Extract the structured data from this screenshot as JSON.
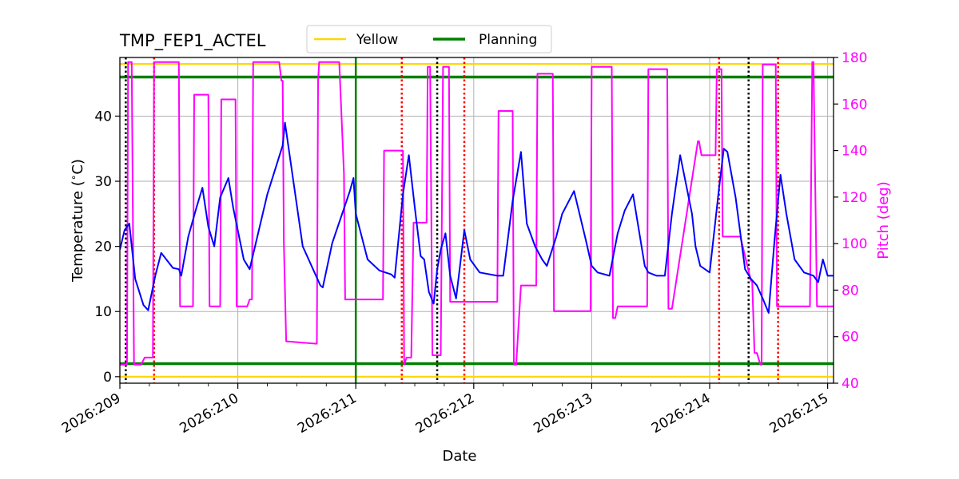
{
  "chart_data": {
    "type": "line",
    "title": "TMP_FEP1_ACTEL",
    "xlabel": "Date",
    "ylabel": "Temperature ($^\\circ$C)",
    "y2label": "Pitch (deg)",
    "x_start_doy": 209,
    "xlim": [
      209,
      215.05
    ],
    "ylim": [
      -1,
      49
    ],
    "y2lim": [
      40,
      180
    ],
    "x_tick_labels": [
      "2026:209",
      "2026:210",
      "2026:211",
      "2026:212",
      "2026:213",
      "2026:214",
      "2026:215"
    ],
    "x_tick_values": [
      209,
      210,
      211,
      212,
      213,
      214,
      215
    ],
    "y_ticks": [
      0,
      10,
      20,
      30,
      40
    ],
    "y2_ticks": [
      40,
      60,
      80,
      100,
      120,
      140,
      160,
      180
    ],
    "grid": true,
    "legend": {
      "placement": "top-center",
      "entries": [
        {
          "name": "Yellow",
          "color": "#FFD700"
        },
        {
          "name": "Planning",
          "color": "#008000"
        }
      ]
    },
    "colors": {
      "temperature": "#0000FF",
      "pitch": "#FF00FF",
      "yellow": "#FFD700",
      "planning": "#008000",
      "red_markers": "#FF0000",
      "black_markers": "#000000",
      "pitch_axis": "#FF00FF"
    },
    "limits": {
      "yellow_high": 48,
      "yellow_low": 0,
      "planning_high": 46,
      "planning_low": 2
    },
    "vertical_lines": {
      "planning": [
        211.0
      ],
      "red_dotted": [
        209.29,
        211.39,
        211.92,
        214.08,
        214.58
      ],
      "black_dotted": [
        209.05,
        211.69,
        214.33
      ]
    },
    "temperature_series": {
      "name": "Temperature",
      "x": [
        209.0,
        209.04,
        209.08,
        209.13,
        209.2,
        209.24,
        209.3,
        209.35,
        209.45,
        209.5,
        209.52,
        209.58,
        209.65,
        209.7,
        209.75,
        209.8,
        209.85,
        209.92,
        209.96,
        210.05,
        210.1,
        210.25,
        210.38,
        210.4,
        210.55,
        210.7,
        210.72,
        210.8,
        210.95,
        210.98,
        211.0,
        211.1,
        211.2,
        211.3,
        211.33,
        211.4,
        211.45,
        211.5,
        211.55,
        211.58,
        211.62,
        211.66,
        211.69,
        211.72,
        211.76,
        211.8,
        211.85,
        211.92,
        211.97,
        212.05,
        212.2,
        212.25,
        212.33,
        212.4,
        212.45,
        212.52,
        212.58,
        212.62,
        212.7,
        212.75,
        212.85,
        212.95,
        213.0,
        213.05,
        213.15,
        213.22,
        213.28,
        213.35,
        213.45,
        213.48,
        213.55,
        213.62,
        213.68,
        213.75,
        213.85,
        213.88,
        213.92,
        214.0,
        214.08,
        214.12,
        214.15,
        214.22,
        214.3,
        214.35,
        214.4,
        214.45,
        214.5,
        214.55,
        214.6,
        214.65,
        214.72,
        214.8,
        214.88,
        214.92,
        214.96,
        215.0,
        215.05
      ],
      "y": [
        19.5,
        22.5,
        23.5,
        15.0,
        11.0,
        10.2,
        15.5,
        19.0,
        16.7,
        16.5,
        15.5,
        21.5,
        26.0,
        29.0,
        23.0,
        20.0,
        27.5,
        30.5,
        26.0,
        18.0,
        16.5,
        28.0,
        35.5,
        39.0,
        20.0,
        14.0,
        13.7,
        20.5,
        28.5,
        30.5,
        25.0,
        18.0,
        16.3,
        15.7,
        15.2,
        28.0,
        34.0,
        26.0,
        18.5,
        18.0,
        13.0,
        11.2,
        16.5,
        19.5,
        22.0,
        15.5,
        12.0,
        22.5,
        18.0,
        16.0,
        15.5,
        15.5,
        27.0,
        34.5,
        23.5,
        20.0,
        18.0,
        17.0,
        21.5,
        25.0,
        28.5,
        21.0,
        17.0,
        16.0,
        15.5,
        22.0,
        25.5,
        28.0,
        17.0,
        16.0,
        15.5,
        15.5,
        25.0,
        34.0,
        25.0,
        20.0,
        17.0,
        16.0,
        29.0,
        35.0,
        34.5,
        27.5,
        16.5,
        15.0,
        14.0,
        12.0,
        9.8,
        21.0,
        31.0,
        25.0,
        18.0,
        16.0,
        15.5,
        14.5,
        18.0,
        15.5,
        15.5
      ]
    },
    "pitch_series": {
      "name": "Pitch",
      "x": [
        209.0,
        209.06,
        209.07,
        209.1,
        209.12,
        209.18,
        209.21,
        209.22,
        209.28,
        209.29,
        209.5,
        209.51,
        209.62,
        209.63,
        209.75,
        209.76,
        209.85,
        209.86,
        209.98,
        209.99,
        210.08,
        210.1,
        210.12,
        210.13,
        210.35,
        210.37,
        210.38,
        210.39,
        210.41,
        210.66,
        210.67,
        210.68,
        210.69,
        210.85,
        210.86,
        210.9,
        210.91,
        210.93,
        210.95,
        211.2,
        211.23,
        211.24,
        211.4,
        211.41,
        211.43,
        211.47,
        211.49,
        211.5,
        211.52,
        211.6,
        211.61,
        211.63,
        211.65,
        211.66,
        211.72,
        211.74,
        211.79,
        211.8,
        211.82,
        211.87,
        211.9,
        211.92,
        212.2,
        212.21,
        212.33,
        212.34,
        212.36,
        212.4,
        212.41,
        212.53,
        212.54,
        212.62,
        212.67,
        212.68,
        212.75,
        212.76,
        212.99,
        213.0,
        213.17,
        213.18,
        213.2,
        213.22,
        213.23,
        213.47,
        213.48,
        213.5,
        213.64,
        213.65,
        213.67,
        213.68,
        213.9,
        213.91,
        213.93,
        213.94,
        214.05,
        214.06,
        214.1,
        214.11,
        214.25,
        214.26,
        214.35,
        214.36,
        214.38,
        214.4,
        214.43,
        214.44,
        214.45,
        214.47,
        214.56,
        214.57,
        214.85,
        214.87,
        214.88,
        214.91,
        215.05
      ],
      "y": [
        48,
        48,
        178,
        178,
        48,
        48,
        51,
        51,
        51,
        178,
        178,
        73,
        73,
        164,
        164,
        73,
        73,
        162,
        162,
        73,
        73,
        76,
        76,
        178,
        178,
        170,
        170,
        100,
        58,
        57,
        57,
        170,
        178,
        178,
        178,
        130,
        76,
        76,
        76,
        76,
        76,
        140,
        140,
        48,
        51,
        51,
        109,
        109,
        109,
        109,
        176,
        176,
        52,
        52,
        52,
        176,
        176,
        75,
        75,
        75,
        75,
        75,
        75,
        157,
        157,
        48,
        48,
        82,
        82,
        82,
        173,
        173,
        173,
        71,
        71,
        71,
        71,
        176,
        176,
        68,
        68,
        73,
        73,
        73,
        175,
        175,
        175,
        72,
        72,
        72,
        144,
        144,
        138,
        138,
        138,
        175,
        175,
        103,
        103,
        103,
        84,
        84,
        53,
        53,
        48,
        48,
        177,
        177,
        177,
        73,
        73,
        178,
        178,
        73,
        73
      ]
    }
  }
}
